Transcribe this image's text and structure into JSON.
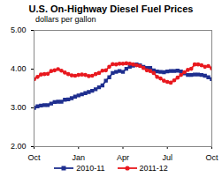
{
  "chart_data": {
    "type": "line",
    "title": "U.S. On-Highway Diesel Fuel Prices",
    "subtitle": "dollars per gallon",
    "categories": [
      "Oct",
      null,
      null,
      null,
      null,
      null,
      null,
      null,
      null,
      null,
      null,
      null,
      null,
      "Jan",
      null,
      null,
      null,
      null,
      null,
      null,
      null,
      null,
      null,
      null,
      null,
      null,
      "Apr",
      null,
      null,
      null,
      null,
      null,
      null,
      null,
      null,
      null,
      null,
      null,
      null,
      "Jul",
      null,
      null,
      null,
      null,
      null,
      null,
      null,
      null,
      null,
      null,
      null,
      null,
      "Oct"
    ],
    "series": [
      {
        "name": "2010-11",
        "color": "#1f2f8f",
        "marker": "square",
        "values": [
          3.0,
          3.04,
          3.06,
          3.07,
          3.07,
          3.11,
          3.15,
          3.16,
          3.16,
          3.21,
          3.22,
          3.25,
          3.29,
          3.32,
          3.35,
          3.38,
          3.41,
          3.44,
          3.48,
          3.53,
          3.58,
          3.7,
          3.79,
          3.9,
          3.93,
          3.95,
          3.93,
          4.01,
          4.06,
          4.09,
          4.12,
          4.1,
          4.06,
          4.03,
          4.03,
          3.97,
          3.94,
          3.93,
          3.92,
          3.94,
          3.95,
          3.95,
          3.96,
          3.94,
          3.89,
          3.85,
          3.85,
          3.86,
          3.86,
          3.85,
          3.83,
          3.79,
          3.74
        ]
      },
      {
        "name": "2011-12",
        "color": "#e8191f",
        "marker": "circle",
        "values": [
          3.74,
          3.8,
          3.86,
          3.87,
          3.88,
          3.95,
          3.97,
          4.0,
          3.96,
          3.91,
          3.87,
          3.84,
          3.83,
          3.85,
          3.86,
          3.85,
          3.82,
          3.83,
          3.87,
          3.9,
          3.96,
          3.97,
          4.06,
          4.13,
          4.12,
          4.14,
          4.14,
          4.15,
          4.14,
          4.12,
          4.1,
          4.08,
          4.03,
          3.97,
          3.95,
          3.9,
          3.8,
          3.76,
          3.7,
          3.67,
          3.65,
          3.71,
          3.78,
          3.85,
          3.92,
          3.98,
          4.01,
          4.12,
          4.12,
          4.1,
          4.06,
          4.08,
          4.02
        ]
      }
    ],
    "ylim": [
      2,
      5
    ],
    "yticks": [
      {
        "value": 2,
        "label": "2.00"
      },
      {
        "value": 3,
        "label": "3.00"
      },
      {
        "value": 4,
        "label": "4.00"
      },
      {
        "value": 5,
        "label": "5.00"
      }
    ],
    "grid": false,
    "legend": "bottom"
  }
}
